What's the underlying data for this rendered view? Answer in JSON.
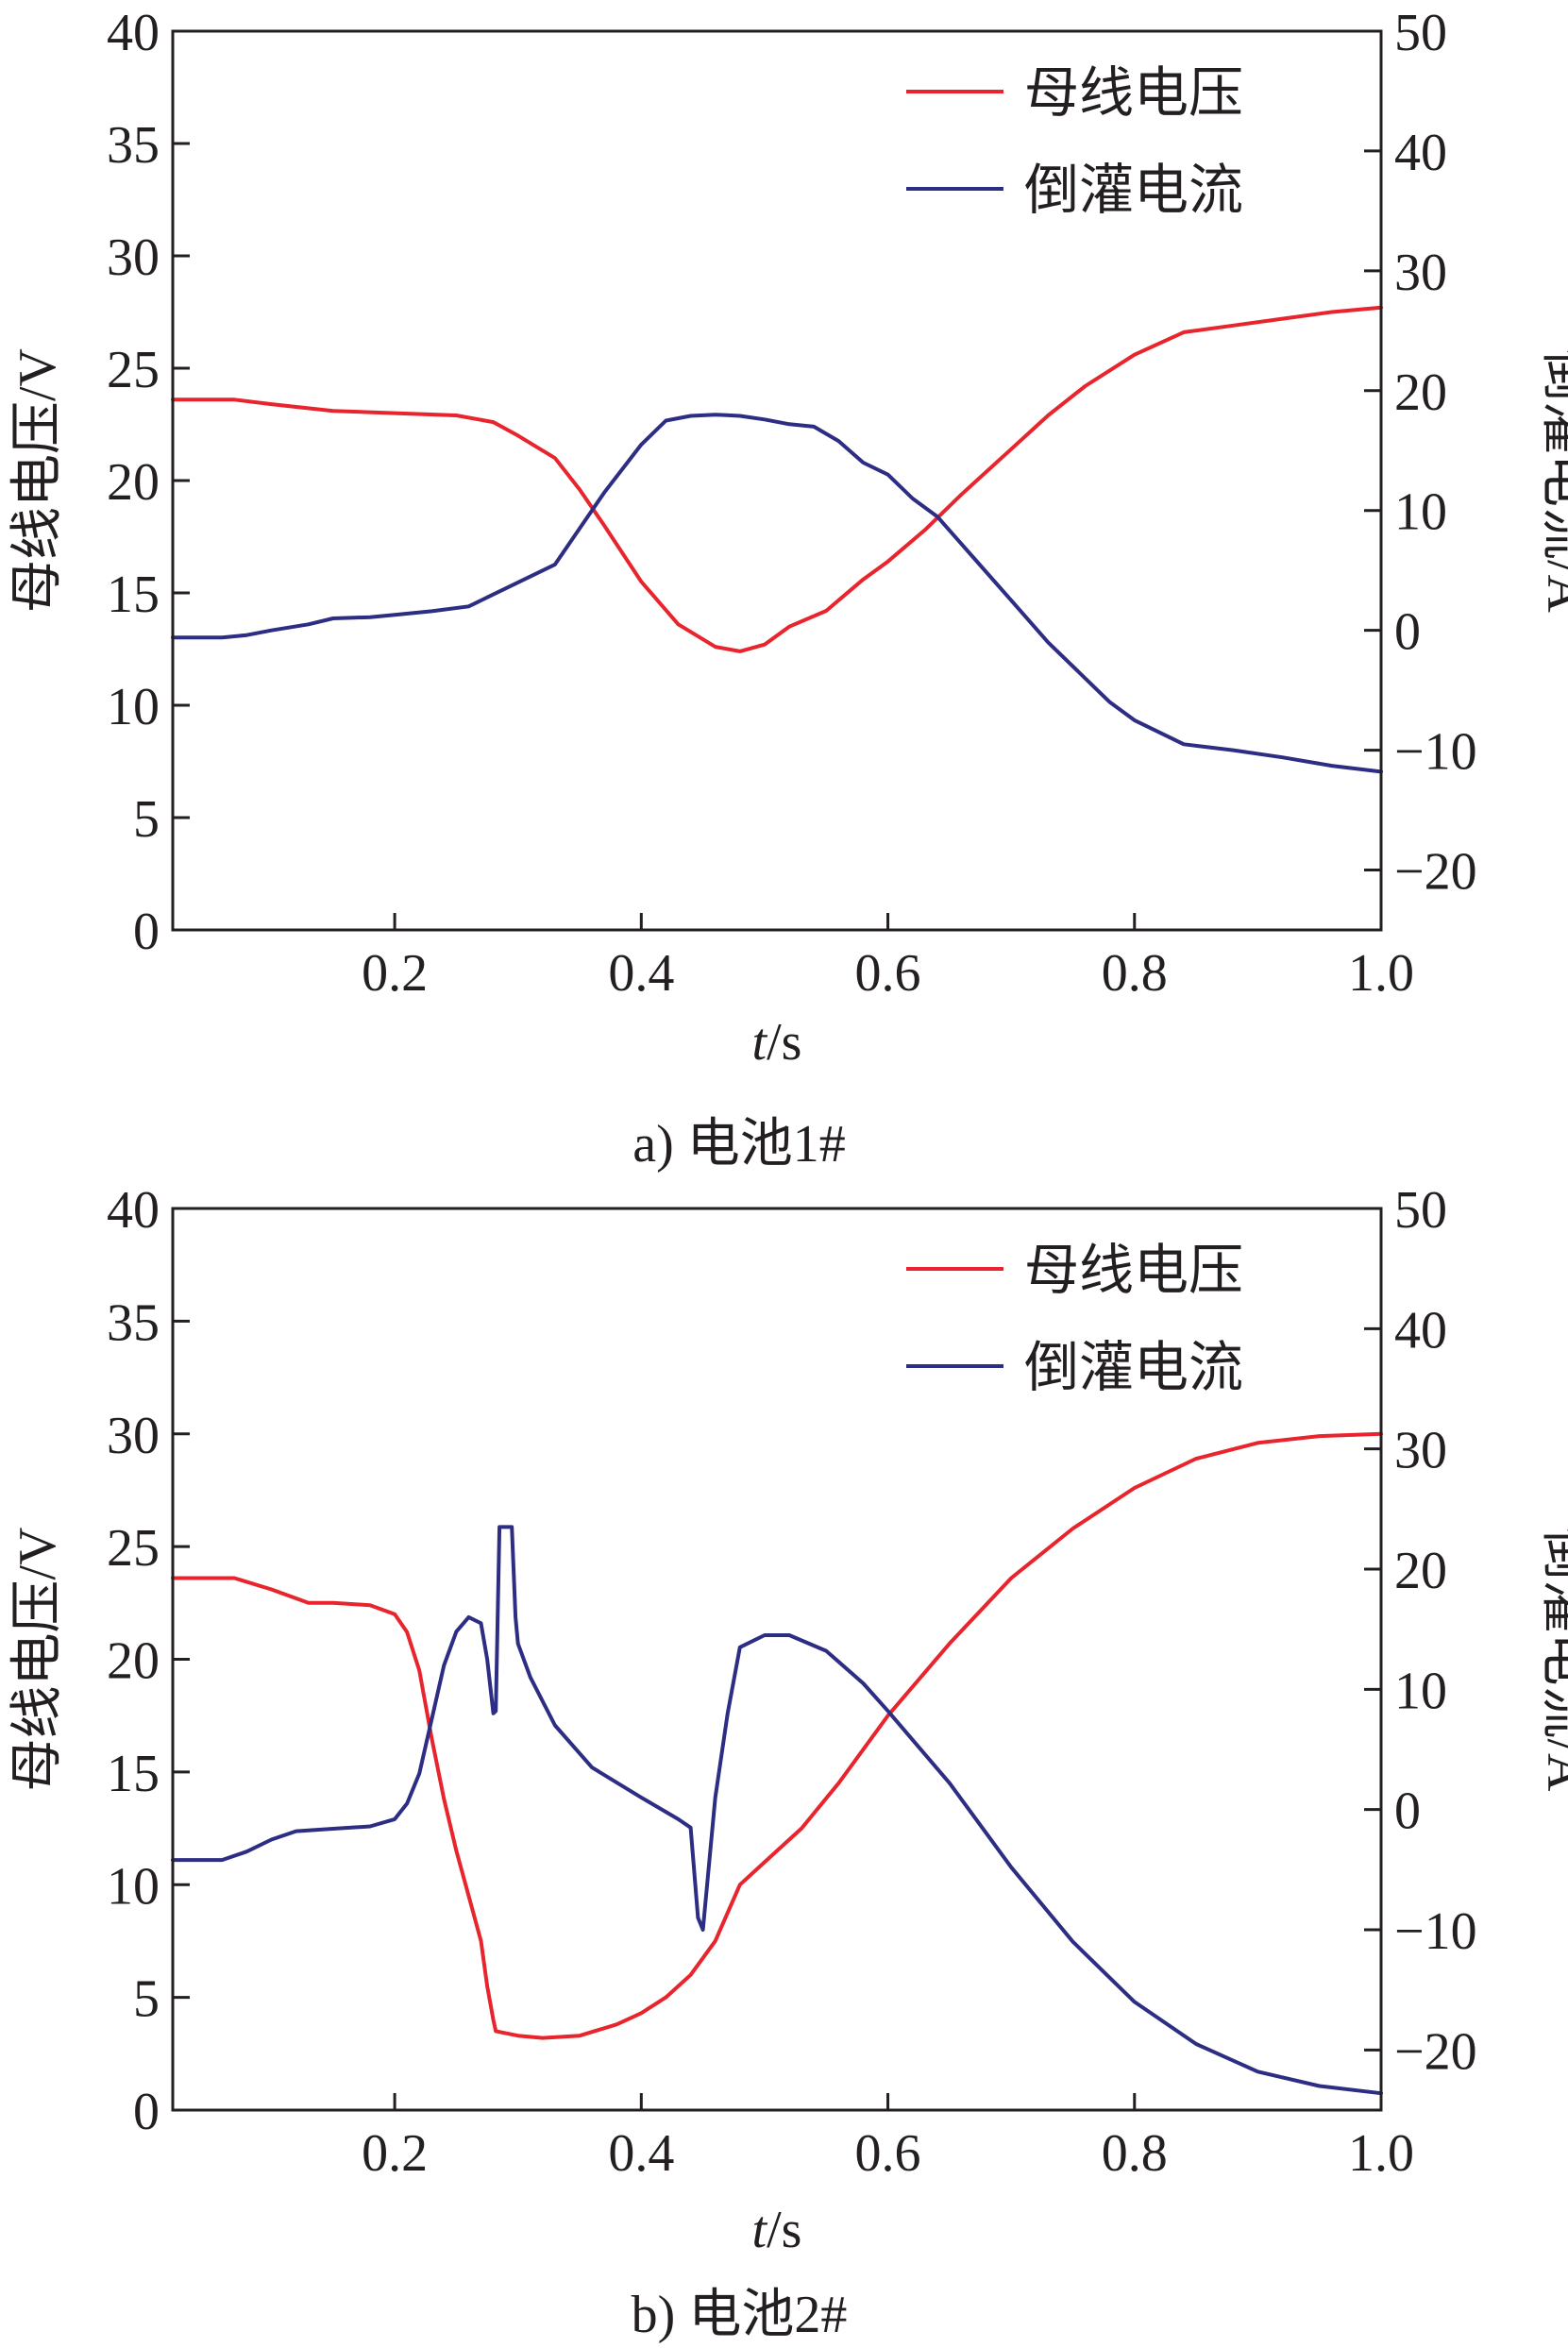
{
  "chart_data": [
    {
      "type": "line",
      "caption": "a) 电池1#",
      "xlabel_italic": "t",
      "xlabel_rest": "/s",
      "ylabel": "母线电压/V",
      "y2label": "倒灌电流/A",
      "xlim": [
        0.02,
        1.0
      ],
      "ylim": [
        0,
        40
      ],
      "y2lim": [
        -25,
        50
      ],
      "xticks": [
        "0.2",
        "0.4",
        "0.6",
        "0.8",
        "1.0"
      ],
      "xtick_values": [
        0.2,
        0.4,
        0.6,
        0.8,
        1.0
      ],
      "yticks": [
        "0",
        "5",
        "10",
        "15",
        "20",
        "25",
        "30",
        "35",
        "40"
      ],
      "ytick_values": [
        0,
        5,
        10,
        15,
        20,
        25,
        30,
        35,
        40
      ],
      "y2ticks": [
        "−20",
        "−10",
        "0",
        "10",
        "20",
        "30",
        "40",
        "50"
      ],
      "y2tick_values": [
        -20,
        -10,
        0,
        10,
        20,
        30,
        40,
        50
      ],
      "legend_position": "top-right",
      "series": [
        {
          "name": "母线电压",
          "color": "#e8242c",
          "axis": "left",
          "x": [
            0.02,
            0.07,
            0.1,
            0.15,
            0.2,
            0.25,
            0.28,
            0.3,
            0.33,
            0.35,
            0.37,
            0.4,
            0.43,
            0.46,
            0.48,
            0.5,
            0.52,
            0.55,
            0.58,
            0.6,
            0.63,
            0.66,
            0.7,
            0.73,
            0.76,
            0.8,
            0.84,
            0.88,
            0.92,
            0.96,
            1.0
          ],
          "y": [
            23.6,
            23.6,
            23.4,
            23.1,
            23.0,
            22.9,
            22.6,
            22.0,
            21.0,
            19.6,
            18.0,
            15.5,
            13.6,
            12.6,
            12.4,
            12.7,
            13.5,
            14.2,
            15.6,
            16.4,
            17.8,
            19.4,
            21.4,
            22.9,
            24.2,
            25.6,
            26.6,
            26.9,
            27.2,
            27.5,
            27.7
          ]
        },
        {
          "name": "倒灌电流",
          "color": "#2c2d83",
          "axis": "right",
          "x": [
            0.02,
            0.06,
            0.08,
            0.1,
            0.13,
            0.15,
            0.18,
            0.2,
            0.23,
            0.26,
            0.28,
            0.3,
            0.33,
            0.35,
            0.37,
            0.4,
            0.42,
            0.44,
            0.46,
            0.48,
            0.5,
            0.52,
            0.54,
            0.56,
            0.58,
            0.6,
            0.62,
            0.64,
            0.67,
            0.7,
            0.73,
            0.76,
            0.78,
            0.8,
            0.84,
            0.88,
            0.92,
            0.96,
            1.0
          ],
          "y": [
            -0.6,
            -0.6,
            -0.4,
            0.0,
            0.5,
            1.0,
            1.1,
            1.3,
            1.6,
            2.0,
            3.0,
            4.0,
            5.5,
            8.5,
            11.5,
            15.5,
            17.5,
            17.9,
            18.0,
            17.9,
            17.6,
            17.2,
            17.0,
            15.8,
            14.0,
            13.0,
            11.0,
            9.5,
            6.0,
            2.5,
            -1.0,
            -4.0,
            -6.0,
            -7.5,
            -9.5,
            -10.0,
            -10.6,
            -11.3,
            -11.8
          ]
        }
      ]
    },
    {
      "type": "line",
      "caption": "b) 电池2#",
      "xlabel_italic": "t",
      "xlabel_rest": "/s",
      "ylabel": "母线电压/V",
      "y2label": "倒灌电流/A",
      "xlim": [
        0.02,
        1.0
      ],
      "ylim": [
        0,
        40
      ],
      "y2lim": [
        -25,
        50
      ],
      "xticks": [
        "0.2",
        "0.4",
        "0.6",
        "0.8",
        "1.0"
      ],
      "xtick_values": [
        0.2,
        0.4,
        0.6,
        0.8,
        1.0
      ],
      "yticks": [
        "0",
        "5",
        "10",
        "15",
        "20",
        "25",
        "30",
        "35",
        "40"
      ],
      "ytick_values": [
        0,
        5,
        10,
        15,
        20,
        25,
        30,
        35,
        40
      ],
      "y2ticks": [
        "−20",
        "−10",
        "0",
        "10",
        "20",
        "30",
        "40",
        "50"
      ],
      "y2tick_values": [
        -20,
        -10,
        0,
        10,
        20,
        30,
        40,
        50
      ],
      "legend_position": "top-right",
      "series": [
        {
          "name": "母线电压",
          "color": "#e8242c",
          "axis": "left",
          "x": [
            0.02,
            0.07,
            0.1,
            0.13,
            0.15,
            0.18,
            0.2,
            0.21,
            0.22,
            0.23,
            0.24,
            0.25,
            0.26,
            0.27,
            0.275,
            0.28,
            0.282,
            0.3,
            0.32,
            0.35,
            0.38,
            0.4,
            0.42,
            0.44,
            0.46,
            0.48,
            0.5,
            0.53,
            0.56,
            0.6,
            0.65,
            0.7,
            0.75,
            0.8,
            0.85,
            0.9,
            0.95,
            1.0
          ],
          "y": [
            23.6,
            23.6,
            23.1,
            22.5,
            22.5,
            22.4,
            22.0,
            21.2,
            19.5,
            16.5,
            13.8,
            11.5,
            9.5,
            7.5,
            5.5,
            4.0,
            3.5,
            3.3,
            3.2,
            3.3,
            3.8,
            4.3,
            5.0,
            6.0,
            7.5,
            10.0,
            11.0,
            12.5,
            14.5,
            17.5,
            20.7,
            23.6,
            25.8,
            27.6,
            28.9,
            29.6,
            29.9,
            30.0
          ]
        },
        {
          "name": "倒灌电流",
          "color": "#2c2d83",
          "axis": "right",
          "x": [
            0.02,
            0.06,
            0.08,
            0.1,
            0.12,
            0.15,
            0.18,
            0.2,
            0.21,
            0.22,
            0.23,
            0.24,
            0.25,
            0.26,
            0.27,
            0.275,
            0.28,
            0.282,
            0.285,
            0.29,
            0.295,
            0.298,
            0.3,
            0.31,
            0.33,
            0.36,
            0.4,
            0.43,
            0.44,
            0.446,
            0.45,
            0.46,
            0.47,
            0.48,
            0.5,
            0.52,
            0.55,
            0.58,
            0.6,
            0.65,
            0.7,
            0.75,
            0.8,
            0.85,
            0.9,
            0.95,
            1.0
          ],
          "y": [
            -4.2,
            -4.2,
            -3.5,
            -2.5,
            -1.8,
            -1.6,
            -1.4,
            -0.8,
            0.5,
            3.0,
            7.5,
            12.0,
            14.8,
            16.0,
            15.5,
            12.5,
            8.0,
            8.2,
            23.5,
            23.5,
            23.5,
            16.0,
            13.8,
            11.0,
            7.0,
            3.5,
            1.0,
            -0.8,
            -1.5,
            -9.0,
            -10.0,
            1.0,
            8.0,
            13.5,
            14.5,
            14.5,
            13.2,
            10.5,
            8.2,
            2.2,
            -4.8,
            -11.0,
            -16.0,
            -19.5,
            -21.8,
            -23.0,
            -23.6
          ]
        }
      ]
    }
  ]
}
